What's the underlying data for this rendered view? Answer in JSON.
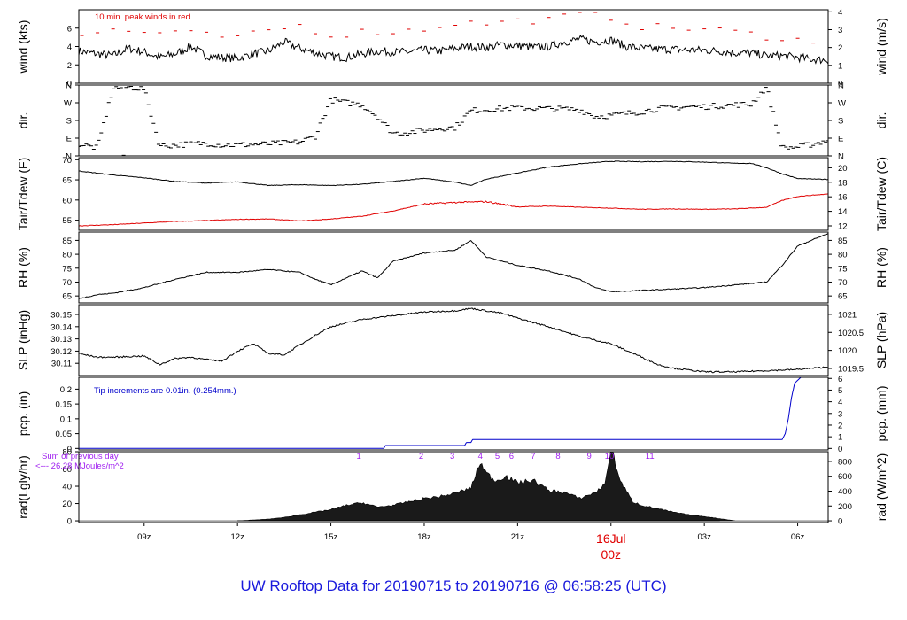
{
  "title": "UW Rooftop Data for 20190715  to  20190716 @ 06:58:25  (UTC)",
  "colors": {
    "frame": "#000000",
    "red": "#e00000",
    "blue": "#0000cc",
    "purple": "#a020f0",
    "title": "#1a1adc"
  },
  "xaxis": {
    "ticks": [
      "09z",
      "12z",
      "15z",
      "18z",
      "21z",
      "00z",
      "03z",
      "06z"
    ],
    "tick_hours": [
      9,
      12,
      15,
      18,
      21,
      24,
      27,
      30
    ],
    "day_label": "16Jul",
    "day_sub": "00z",
    "hour_range": [
      6.9,
      30.98
    ]
  },
  "chart_data": [
    {
      "type": "line",
      "id": "wind",
      "ylabel_left": "wind (kts)",
      "ylabel_right": "wind (m/s)",
      "annotation": "10 min. peak winds in red",
      "ylim": [
        0,
        8
      ],
      "left_ticks": [
        0,
        2,
        4,
        6
      ],
      "right_ticks": [
        0,
        1,
        2,
        3,
        4
      ],
      "right_scale": 0.5144,
      "series": [
        {
          "color": "#000000",
          "x": [
            6.9,
            7.5,
            8,
            8.5,
            9,
            9.5,
            10,
            10.5,
            11,
            11.5,
            12,
            12.5,
            13,
            13.5,
            14,
            14.5,
            15,
            15.5,
            16,
            16.5,
            17,
            17.5,
            18,
            18.5,
            19,
            19.5,
            20,
            20.5,
            21,
            21.5,
            22,
            22.5,
            23,
            23.5,
            24,
            24.5,
            25,
            25.5,
            26,
            26.5,
            27,
            27.5,
            28,
            28.5,
            29,
            29.5,
            30,
            30.5,
            30.98
          ],
          "y": [
            3.5,
            3.2,
            3.0,
            3.8,
            3.4,
            2.8,
            3.2,
            4.0,
            3.0,
            2.8,
            2.7,
            3.2,
            3.5,
            4.5,
            3.8,
            3.3,
            2.9,
            2.8,
            3.2,
            3.5,
            3.4,
            3.4,
            3.6,
            3.5,
            3.8,
            4.0,
            3.9,
            4.2,
            4.1,
            3.9,
            4.0,
            4.5,
            4.8,
            4.5,
            4.7,
            4.0,
            3.8,
            3.7,
            3.7,
            3.6,
            3.6,
            3.5,
            3.3,
            3.3,
            3.0,
            3.0,
            2.8,
            2.6,
            2.5
          ]
        },
        {
          "color": "#e00000",
          "style": "dash",
          "x": [
            7,
            8,
            9,
            10,
            11,
            12,
            13,
            14,
            15,
            16,
            17,
            18,
            19,
            20,
            21,
            22,
            23,
            24,
            25,
            26,
            27,
            28,
            29,
            30,
            30.8
          ],
          "y": [
            5.3,
            5.8,
            5.5,
            5.6,
            5.2,
            4.9,
            5.7,
            6.3,
            5.2,
            5.6,
            5.6,
            5.9,
            6.6,
            6.5,
            6.8,
            6.9,
            7.5,
            7.2,
            6.2,
            6.0,
            5.9,
            5.6,
            5.1,
            4.8,
            3.8
          ]
        }
      ]
    },
    {
      "type": "scatter",
      "id": "dir",
      "ylabel_left": "dir.",
      "ylabel_right": "dir.",
      "ylim": [
        0,
        360
      ],
      "left_ticks": [
        "N",
        "E",
        "S",
        "W",
        "N"
      ],
      "right_ticks": [
        "N",
        "E",
        "S",
        "W",
        "N"
      ],
      "tick_values": [
        0,
        90,
        180,
        270,
        360
      ],
      "series": [
        {
          "color": "#000000",
          "x": [
            6.9,
            7.5,
            8,
            8.5,
            9,
            9.5,
            10,
            10.5,
            11,
            11.5,
            12,
            12.5,
            13,
            13.5,
            14,
            14.5,
            15,
            15.5,
            16,
            16.5,
            17,
            17.5,
            18,
            18.5,
            19,
            19.5,
            20,
            20.5,
            21,
            21.5,
            22,
            22.5,
            23,
            23.5,
            24,
            24.5,
            25,
            25.5,
            26,
            26.5,
            27,
            27.5,
            28,
            28.5,
            29,
            29.5,
            30,
            30.5,
            30.98
          ],
          "y": [
            60,
            40,
            345,
            350,
            340,
            50,
            55,
            60,
            65,
            55,
            55,
            58,
            60,
            65,
            70,
            100,
            285,
            270,
            260,
            200,
            115,
            120,
            130,
            140,
            145,
            230,
            235,
            240,
            245,
            242,
            240,
            238,
            235,
            200,
            205,
            215,
            225,
            240,
            245,
            250,
            250,
            255,
            260,
            262,
            350,
            40,
            45,
            60,
            80
          ]
        }
      ]
    },
    {
      "type": "line",
      "id": "temp",
      "ylabel_left": "Tair/Tdew (F)",
      "ylabel_right": "Tair/Tdew (C)",
      "ylim": [
        52.5,
        70.5
      ],
      "left_ticks": [
        55,
        60,
        65,
        70
      ],
      "right_ticks": [
        12,
        14,
        16,
        18,
        20
      ],
      "right_scale": "F_to_C",
      "series": [
        {
          "color": "#000000",
          "x": [
            6.9,
            8,
            9,
            10,
            11,
            12,
            13,
            14,
            15,
            16,
            17,
            18,
            19,
            19.5,
            20,
            21,
            22,
            23,
            24,
            25,
            26,
            27,
            28,
            28.5,
            29,
            29.5,
            30,
            30.98
          ],
          "y": [
            67.2,
            66.2,
            65.5,
            64.6,
            64.2,
            64.5,
            63.6,
            63.8,
            63.6,
            63.9,
            64.6,
            65.4,
            64.4,
            63.6,
            65.2,
            66.7,
            68.2,
            69.0,
            69.6,
            69.5,
            69.6,
            69.4,
            69.1,
            69.1,
            68.0,
            66.5,
            65.3,
            65.1
          ]
        },
        {
          "color": "#e00000",
          "x": [
            6.9,
            8,
            9,
            10,
            11,
            12,
            13,
            14,
            15,
            16,
            17,
            18,
            19,
            20,
            21,
            22,
            23,
            24,
            25,
            26,
            27,
            28,
            29,
            29.5,
            30,
            30.98
          ],
          "y": [
            53.6,
            53.9,
            54.3,
            54.7,
            54.9,
            55.2,
            55.3,
            54.8,
            55.3,
            56.0,
            57.3,
            59.0,
            59.4,
            59.6,
            58.3,
            58.5,
            58.2,
            58.0,
            57.7,
            57.8,
            57.7,
            57.8,
            58.2,
            59.9,
            60.9,
            61.5
          ]
        }
      ]
    },
    {
      "type": "line",
      "id": "rh",
      "ylabel_left": "RH (%)",
      "ylabel_right": "RH (%)",
      "ylim": [
        62.5,
        88
      ],
      "left_ticks": [
        65,
        70,
        75,
        80,
        85
      ],
      "right_ticks": [
        65,
        70,
        75,
        80,
        85
      ],
      "series": [
        {
          "color": "#000000",
          "x": [
            6.9,
            7.5,
            8,
            9,
            10,
            11,
            12,
            13,
            14,
            14.5,
            15,
            16,
            16.5,
            17,
            18,
            19,
            19.5,
            20,
            21,
            22,
            23,
            23.5,
            24,
            25,
            26,
            27,
            28,
            29,
            29.5,
            30,
            30.98
          ],
          "y": [
            64,
            65.5,
            66,
            68,
            71,
            73.5,
            73.5,
            74.5,
            73.5,
            71,
            69,
            74,
            71.5,
            77.5,
            80.5,
            81.5,
            85,
            79,
            76,
            74,
            71,
            68,
            66.5,
            67,
            67.5,
            68,
            69,
            70,
            76,
            83,
            87.5
          ]
        }
      ]
    },
    {
      "type": "line",
      "id": "slp",
      "ylabel_left": "SLP (inHg)",
      "ylabel_right": "SLP (hPa)",
      "ylim": [
        30.1,
        30.158
      ],
      "left_ticks": [
        30.11,
        30.12,
        30.13,
        30.14,
        30.15
      ],
      "right_ticks": [
        1019.5,
        1020,
        1020.5,
        1021
      ],
      "right_scale": 33.8639,
      "series": [
        {
          "color": "#000000",
          "x": [
            6.9,
            7.5,
            8,
            9,
            9.5,
            10,
            10.5,
            11,
            11.5,
            12,
            12.5,
            13,
            13.5,
            14,
            14.5,
            15,
            16,
            17,
            18,
            19,
            19.5,
            20,
            20.5,
            21,
            22,
            23,
            24,
            25,
            25.5,
            26,
            27,
            28,
            29,
            30,
            30.98
          ],
          "y": [
            30.118,
            30.115,
            30.115,
            30.116,
            30.109,
            30.114,
            30.115,
            30.113,
            30.112,
            30.12,
            30.126,
            30.118,
            30.117,
            30.125,
            30.133,
            30.14,
            30.146,
            30.149,
            30.152,
            30.153,
            30.155,
            30.153,
            30.151,
            30.147,
            30.14,
            30.132,
            30.126,
            30.115,
            30.109,
            30.106,
            30.103,
            30.103,
            30.104,
            30.105,
            30.107
          ]
        }
      ]
    },
    {
      "type": "line",
      "id": "pcp",
      "ylabel_left": "pcp. (in)",
      "ylabel_right": "pcp. (mm)",
      "annotation": "Tip increments are 0.01in. (0.254mm.)",
      "ylim": [
        -0.005,
        0.24
      ],
      "left_ticks": [
        0,
        0.05,
        0.1,
        0.15,
        0.2
      ],
      "right_ticks": [
        0,
        1,
        2,
        3,
        4,
        5,
        6
      ],
      "right_scale": 25.4,
      "series": [
        {
          "color": "#0000cc",
          "x": [
            6.9,
            16.7,
            16.75,
            19.3,
            19.35,
            19.5,
            19.55,
            29.5,
            29.6,
            29.7,
            29.8,
            29.9,
            30,
            30.1,
            30.98
          ],
          "y": [
            0,
            0,
            0.01,
            0.01,
            0.02,
            0.02,
            0.03,
            0.03,
            0.05,
            0.1,
            0.17,
            0.22,
            0.23,
            0.24,
            0.24
          ]
        }
      ]
    },
    {
      "type": "area",
      "id": "rad",
      "ylabel_left": "rad(Lgly/hr)",
      "ylabel_right": "rad (W/m^2)",
      "annotation": [
        "Sum of previous day",
        "<--- 26.28 MJoules/m^2"
      ],
      "hour_labels": [
        "1",
        "2",
        "3",
        "4",
        "5",
        "6",
        "7",
        "8",
        "9",
        "10",
        "11"
      ],
      "hour_label_x": [
        15.9,
        17.9,
        18.9,
        19.8,
        20.35,
        20.8,
        21.5,
        22.3,
        23.3,
        23.95,
        25.25
      ],
      "ylim": [
        -2,
        80
      ],
      "left_ticks": [
        0,
        20,
        40,
        60,
        80
      ],
      "right_ticks": [
        0,
        200,
        400,
        600,
        800
      ],
      "right_scale": 11.63,
      "series": [
        {
          "color": "#000000",
          "x": [
            6.9,
            12,
            12.5,
            13,
            13.5,
            14,
            14.5,
            15,
            15.5,
            16,
            16.5,
            17,
            17.5,
            18,
            18.5,
            19,
            19.5,
            19.8,
            20,
            20.3,
            20.6,
            21,
            21.5,
            22,
            22.5,
            23,
            23.5,
            23.8,
            24,
            24.3,
            24.7,
            25,
            25.5,
            26,
            26.5,
            27,
            28,
            30.98
          ],
          "y": [
            0,
            0,
            1,
            2,
            4,
            7,
            10,
            13,
            18,
            21,
            16,
            18,
            22,
            26,
            28,
            32,
            38,
            68,
            55,
            46,
            52,
            44,
            47,
            35,
            33,
            26,
            33,
            42,
            85,
            46,
            22,
            18,
            14,
            10,
            7,
            5,
            0,
            0
          ]
        }
      ]
    }
  ]
}
